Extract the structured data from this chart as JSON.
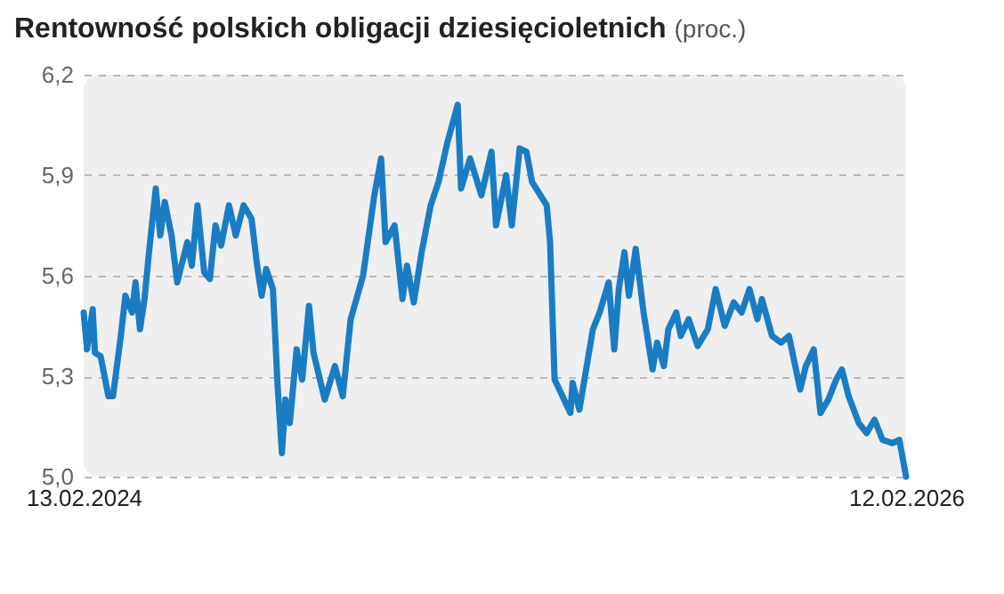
{
  "chart_data": {
    "type": "line",
    "title": "Rentowność polskich obligacji dziesięcioletnich",
    "subtitle": "(proc.)",
    "x": [
      "2024-02-13",
      "2024-02-16",
      "2024-02-21",
      "2024-02-23",
      "2024-02-28",
      "2024-03-06",
      "2024-03-10",
      "2024-03-17",
      "2024-03-21",
      "2024-03-27",
      "2024-03-30",
      "2024-04-03",
      "2024-04-07",
      "2024-04-11",
      "2024-04-17",
      "2024-04-21",
      "2024-04-25",
      "2024-05-01",
      "2024-05-06",
      "2024-05-15",
      "2024-05-19",
      "2024-05-24",
      "2024-05-30",
      "2024-06-04",
      "2024-06-09",
      "2024-06-14",
      "2024-06-21",
      "2024-06-27",
      "2024-07-04",
      "2024-07-11",
      "2024-07-16",
      "2024-07-20",
      "2024-07-24",
      "2024-07-30",
      "2024-08-03",
      "2024-08-07",
      "2024-08-10",
      "2024-08-14",
      "2024-08-20",
      "2024-08-25",
      "2024-08-31",
      "2024-09-04",
      "2024-09-14",
      "2024-09-23",
      "2024-09-30",
      "2024-10-07",
      "2024-10-18",
      "2024-10-28",
      "2024-11-03",
      "2024-11-07",
      "2024-11-15",
      "2024-11-22",
      "2024-11-26",
      "2024-12-02",
      "2024-12-09",
      "2024-12-17",
      "2024-12-24",
      "2025-01-01",
      "2025-01-10",
      "2025-01-13",
      "2025-01-21",
      "2025-01-31",
      "2025-02-09",
      "2025-02-13",
      "2025-02-22",
      "2025-02-27",
      "2025-03-06",
      "2025-03-12",
      "2025-03-17",
      "2025-03-30",
      "2025-04-02",
      "2025-04-06",
      "2025-04-13",
      "2025-04-20",
      "2025-04-22",
      "2025-04-28",
      "2025-05-04",
      "2025-05-10",
      "2025-05-16",
      "2025-05-24",
      "2025-05-29",
      "2025-06-02",
      "2025-06-07",
      "2025-06-11",
      "2025-06-17",
      "2025-06-24",
      "2025-07-02",
      "2025-07-06",
      "2025-07-12",
      "2025-07-16",
      "2025-07-23",
      "2025-07-27",
      "2025-08-03",
      "2025-08-11",
      "2025-08-20",
      "2025-08-27",
      "2025-09-04",
      "2025-09-12",
      "2025-09-19",
      "2025-09-26",
      "2025-10-03",
      "2025-10-07",
      "2025-10-16",
      "2025-10-24",
      "2025-10-31",
      "2025-11-10",
      "2025-11-15",
      "2025-11-22",
      "2025-11-28",
      "2025-12-05",
      "2025-12-12",
      "2025-12-17",
      "2025-12-23",
      "2026-01-01",
      "2026-01-08",
      "2026-01-15",
      "2026-01-22",
      "2026-01-31",
      "2026-02-06",
      "2026-02-12"
    ],
    "series": [
      {
        "color": "#1a7dc4",
        "values": [
          5.49,
          5.38,
          5.5,
          5.37,
          5.36,
          5.24,
          5.24,
          5.42,
          5.54,
          5.49,
          5.58,
          5.44,
          5.53,
          5.67,
          5.86,
          5.72,
          5.82,
          5.72,
          5.58,
          5.7,
          5.63,
          5.81,
          5.61,
          5.59,
          5.75,
          5.69,
          5.81,
          5.72,
          5.81,
          5.77,
          5.63,
          5.54,
          5.62,
          5.56,
          5.28,
          5.07,
          5.23,
          5.16,
          5.38,
          5.29,
          5.51,
          5.37,
          5.23,
          5.33,
          5.24,
          5.47,
          5.6,
          5.84,
          5.95,
          5.7,
          5.75,
          5.53,
          5.63,
          5.52,
          5.67,
          5.81,
          5.88,
          6.0,
          6.11,
          5.86,
          5.95,
          5.84,
          5.97,
          5.75,
          5.9,
          5.75,
          5.98,
          5.97,
          5.88,
          5.81,
          5.7,
          5.29,
          5.24,
          5.19,
          5.28,
          5.2,
          5.32,
          5.44,
          5.49,
          5.58,
          5.38,
          5.56,
          5.67,
          5.54,
          5.68,
          5.49,
          5.32,
          5.4,
          5.33,
          5.44,
          5.49,
          5.42,
          5.47,
          5.39,
          5.44,
          5.56,
          5.45,
          5.52,
          5.49,
          5.56,
          5.47,
          5.53,
          5.42,
          5.4,
          5.42,
          5.26,
          5.33,
          5.38,
          5.19,
          5.23,
          5.29,
          5.32,
          5.24,
          5.16,
          5.13,
          5.17,
          5.11,
          5.1,
          5.11,
          5.0
        ]
      }
    ],
    "xlim": [
      "2024-02-13",
      "2026-02-12"
    ],
    "xticks": [
      {
        "value": "2024-02-13",
        "label": "13.02.2024"
      },
      {
        "value": "2026-02-12",
        "label": "12.02.2026"
      }
    ],
    "ylim": [
      5.0,
      6.2
    ],
    "yticks": [
      {
        "value": 5.0,
        "label": "5,0"
      },
      {
        "value": 5.3,
        "label": "5,3"
      },
      {
        "value": 5.6,
        "label": "5,6"
      },
      {
        "value": 5.9,
        "label": "5,9"
      },
      {
        "value": 6.2,
        "label": "6,2"
      }
    ],
    "grid": "y"
  }
}
